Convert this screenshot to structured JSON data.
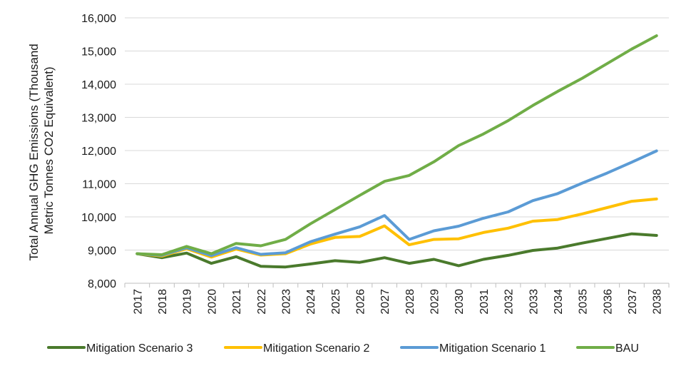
{
  "chart_data": {
    "type": "line",
    "x": [
      "2017",
      "2018",
      "2019",
      "2020",
      "2021",
      "2022",
      "2023",
      "2024",
      "2025",
      "2026",
      "2027",
      "2028",
      "2029",
      "2030",
      "2031",
      "2032",
      "2033",
      "2034",
      "2035",
      "2036",
      "2037",
      "2038"
    ],
    "ylabel": [
      "Total Annual GHG Emissions (Thousand",
      "Metric Tonnes CO2 Equivalent)"
    ],
    "ylim": [
      8000,
      16000
    ],
    "yticks": [
      8000,
      9000,
      10000,
      11000,
      12000,
      13000,
      14000,
      15000,
      16000
    ],
    "ytick_labels": [
      "8,000",
      "9,000",
      "10,000",
      "11,000",
      "12,000",
      "13,000",
      "14,000",
      "15,000",
      "16,000"
    ],
    "grid": "horizontal",
    "legend_position": "bottom",
    "series": [
      {
        "name": "Mitigation Scenario 3",
        "color": "#4a7a2c",
        "values": [
          8890,
          8770,
          8910,
          8600,
          8800,
          8510,
          8490,
          8580,
          8680,
          8630,
          8770,
          8600,
          8720,
          8530,
          8720,
          8840,
          8990,
          9060,
          9210,
          9350,
          9490,
          9440
        ]
      },
      {
        "name": "Mitigation Scenario 2",
        "color": "#ffc000",
        "values": [
          8890,
          8820,
          9040,
          8790,
          9030,
          8850,
          8890,
          9180,
          9380,
          9410,
          9730,
          9160,
          9320,
          9340,
          9530,
          9660,
          9870,
          9920,
          10090,
          10280,
          10470,
          10540
        ]
      },
      {
        "name": "Mitigation Scenario 1",
        "color": "#5b9bd5",
        "values": [
          8890,
          8840,
          9070,
          8830,
          9070,
          8870,
          8920,
          9250,
          9480,
          9700,
          10040,
          9320,
          9580,
          9720,
          9960,
          10150,
          10490,
          10700,
          11020,
          11320,
          11650,
          11990
        ]
      },
      {
        "name": "BAU",
        "color": "#70ad47",
        "values": [
          8890,
          8860,
          9110,
          8890,
          9200,
          9130,
          9320,
          9790,
          10220,
          10650,
          11070,
          11250,
          11660,
          12150,
          12500,
          12900,
          13360,
          13780,
          14180,
          14620,
          15060,
          15460
        ]
      }
    ]
  }
}
